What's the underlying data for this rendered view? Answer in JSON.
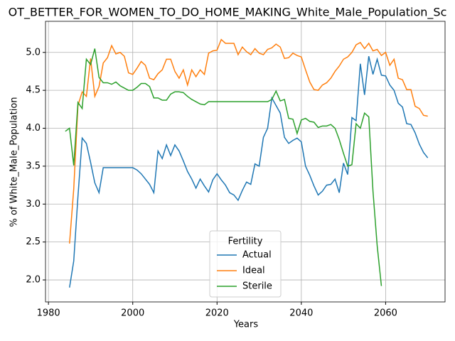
{
  "chart_data": {
    "type": "line",
    "title": "OT_BETTER_FOR_WOMEN_TO_DO_HOME_MAKING_White_Male_Population_Sc",
    "x_label": "Years",
    "y_label": "% of White_Male_Population",
    "x": [
      1984,
      1985,
      1986,
      1987,
      1988,
      1989,
      1990,
      1991,
      1992,
      1993,
      1994,
      1995,
      1996,
      1997,
      1998,
      1999,
      2000,
      2001,
      2002,
      2003,
      2004,
      2005,
      2006,
      2007,
      2008,
      2009,
      2010,
      2011,
      2012,
      2013,
      2014,
      2015,
      2016,
      2017,
      2018,
      2019,
      2020,
      2021,
      2022,
      2023,
      2024,
      2025,
      2026,
      2027,
      2028,
      2029,
      2030,
      2031,
      2032,
      2033,
      2034,
      2035,
      2036,
      2037,
      2038,
      2039,
      2040,
      2041,
      2042,
      2043,
      2044,
      2045,
      2046,
      2047,
      2048,
      2049,
      2050,
      2051,
      2052,
      2053,
      2054,
      2055,
      2056,
      2057,
      2058,
      2059,
      2060,
      2061,
      2062,
      2063,
      2064,
      2065,
      2066,
      2067,
      2068,
      2069,
      2070
    ],
    "series": [
      {
        "name": "Actual",
        "color": "#1f77b4",
        "values": [
          null,
          1.9,
          2.25,
          3.1,
          3.87,
          3.8,
          3.55,
          3.28,
          3.15,
          3.48,
          3.48,
          3.48,
          3.48,
          3.48,
          3.48,
          3.48,
          3.48,
          3.45,
          3.4,
          3.33,
          3.26,
          3.15,
          3.7,
          3.6,
          3.78,
          3.64,
          3.78,
          3.7,
          3.57,
          3.43,
          3.33,
          3.21,
          3.33,
          3.24,
          3.16,
          3.32,
          3.4,
          3.32,
          3.25,
          3.15,
          3.12,
          3.05,
          3.18,
          3.29,
          3.26,
          3.53,
          3.5,
          3.88,
          4.0,
          4.4,
          4.3,
          4.2,
          3.88,
          3.8,
          3.84,
          3.87,
          3.82,
          3.5,
          3.38,
          3.24,
          3.12,
          3.17,
          3.25,
          3.26,
          3.33,
          3.15,
          3.54,
          3.39,
          4.14,
          4.1,
          4.85,
          4.44,
          4.95,
          4.71,
          4.91,
          4.7,
          4.69,
          4.57,
          4.5,
          4.33,
          4.28,
          4.06,
          4.05,
          3.94,
          3.79,
          3.68,
          3.61
        ]
      },
      {
        "name": "Ideal",
        "color": "#ff7f0e",
        "values": [
          null,
          2.48,
          3.2,
          4.3,
          4.48,
          4.42,
          4.92,
          4.42,
          4.55,
          4.86,
          4.93,
          5.09,
          4.98,
          5.0,
          4.95,
          4.73,
          4.71,
          4.79,
          4.88,
          4.83,
          4.66,
          4.64,
          4.72,
          4.77,
          4.91,
          4.91,
          4.75,
          4.66,
          4.77,
          4.57,
          4.77,
          4.68,
          4.77,
          4.71,
          4.99,
          5.02,
          5.03,
          5.17,
          5.12,
          5.12,
          5.12,
          4.97,
          5.07,
          5.01,
          4.97,
          5.05,
          4.99,
          4.97,
          5.04,
          5.06,
          5.11,
          5.07,
          4.92,
          4.93,
          4.99,
          4.96,
          4.94,
          4.77,
          4.61,
          4.51,
          4.5,
          4.57,
          4.6,
          4.66,
          4.75,
          4.82,
          4.91,
          4.94,
          5.0,
          5.1,
          5.13,
          5.05,
          5.12,
          5.02,
          5.04,
          4.96,
          5.0,
          4.83,
          4.91,
          4.66,
          4.64,
          4.51,
          4.51,
          4.29,
          4.26,
          4.17,
          4.16
        ]
      },
      {
        "name": "Sterile",
        "color": "#2ca02c",
        "values": [
          3.96,
          4.0,
          3.51,
          4.34,
          4.26,
          4.91,
          4.84,
          5.05,
          4.67,
          4.6,
          4.6,
          4.58,
          4.61,
          4.56,
          4.53,
          4.5,
          4.5,
          4.54,
          4.59,
          4.59,
          4.55,
          4.4,
          4.4,
          4.37,
          4.37,
          4.45,
          4.48,
          4.48,
          4.47,
          4.42,
          4.38,
          4.35,
          4.32,
          4.31,
          4.35,
          4.35,
          4.35,
          4.35,
          4.35,
          4.35,
          4.35,
          4.35,
          4.35,
          4.35,
          4.35,
          4.35,
          4.35,
          4.35,
          4.35,
          4.38,
          4.49,
          4.36,
          4.38,
          4.13,
          4.12,
          3.93,
          4.11,
          4.13,
          4.09,
          4.08,
          4.01,
          4.03,
          4.03,
          4.05,
          4.0,
          3.85,
          3.67,
          3.5,
          3.52,
          4.06,
          4.0,
          4.2,
          4.15,
          3.17,
          2.45,
          1.92,
          null,
          null,
          null,
          null,
          null,
          null,
          null,
          null,
          null,
          null,
          null
        ]
      }
    ],
    "xlim": [
      1979.3,
      2074.1
    ],
    "xticks": [
      1980,
      2000,
      2020,
      2040,
      2060
    ],
    "ylim": [
      1.71,
      5.41
    ],
    "yticks": [
      {
        "value": 2,
        "label": "2.0"
      },
      2.5,
      {
        "value": 3,
        "label": "3.0"
      },
      3.5,
      {
        "value": 4,
        "label": "4.0"
      },
      4.5,
      {
        "value": 5,
        "label": "5.0"
      }
    ],
    "grid": true,
    "legend_title": "Fertility",
    "legend_loc": "lower center"
  }
}
